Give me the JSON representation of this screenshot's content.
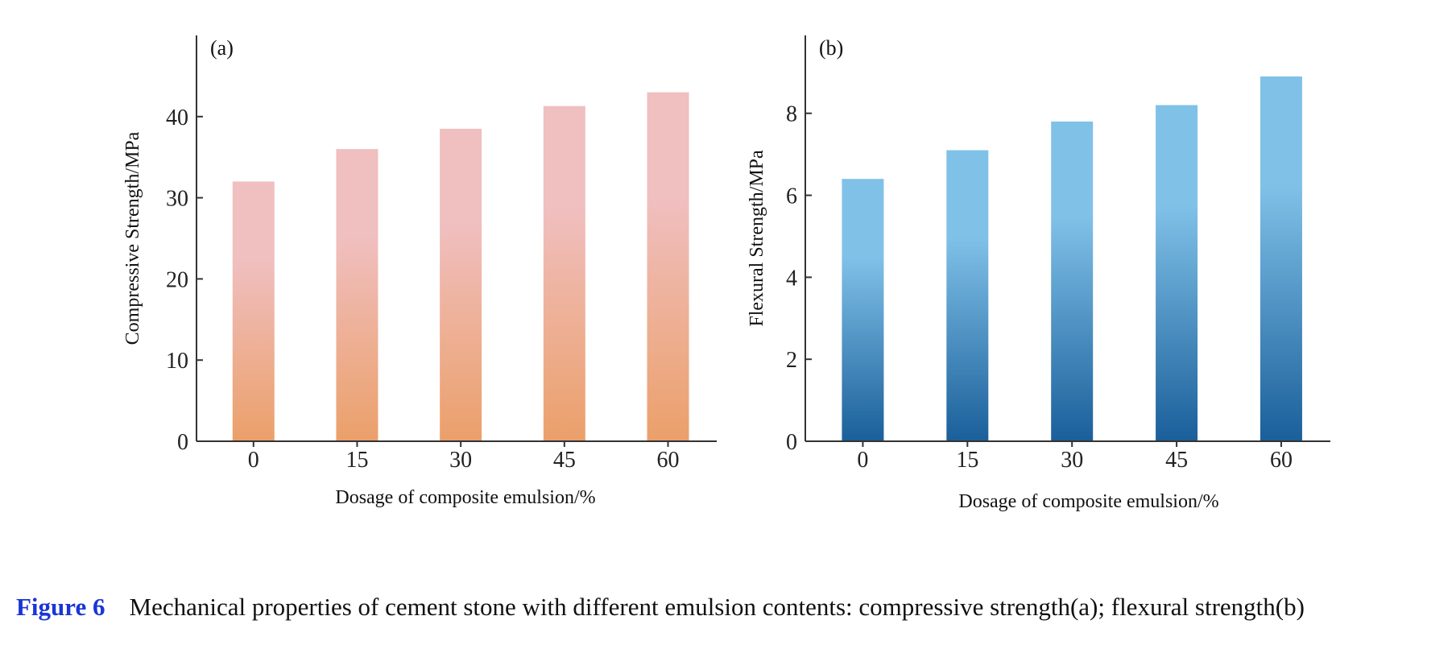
{
  "caption": {
    "figure_number": "Figure 6",
    "text": "Mechanical properties of cement stone with different emulsion contents: compressive strength(a); flexural strength(b)"
  },
  "colors": {
    "a_top": "#F0BFC0",
    "a_bottom": "#EBA06A",
    "b_top": "#80C1E8",
    "b_bottom": "#1A5F9A",
    "caption_accent": "#1A35D6"
  },
  "chart_data": [
    {
      "type": "bar",
      "panel_label": "(a)",
      "categories": [
        "0",
        "15",
        "30",
        "45",
        "60"
      ],
      "values": [
        32,
        36,
        38.5,
        41.3,
        43
      ],
      "xlabel": "Dosage of composite emulsion/%",
      "ylabel": "Compressive Strength/MPa",
      "ylim": [
        0,
        50
      ],
      "yticks": [
        "0",
        "10",
        "20",
        "30",
        "40"
      ],
      "grid": false,
      "legend": "none"
    },
    {
      "type": "bar",
      "panel_label": "(b)",
      "categories": [
        "0",
        "15",
        "30",
        "45",
        "60"
      ],
      "values": [
        6.4,
        7.1,
        7.8,
        8.2,
        8.9
      ],
      "xlabel": "Dosage of composite emulsion/%",
      "ylabel": "Flexural Strength/MPa",
      "ylim": [
        0,
        9.9
      ],
      "yticks": [
        "0",
        "2",
        "4",
        "6",
        "8"
      ],
      "grid": false,
      "legend": "none"
    }
  ]
}
